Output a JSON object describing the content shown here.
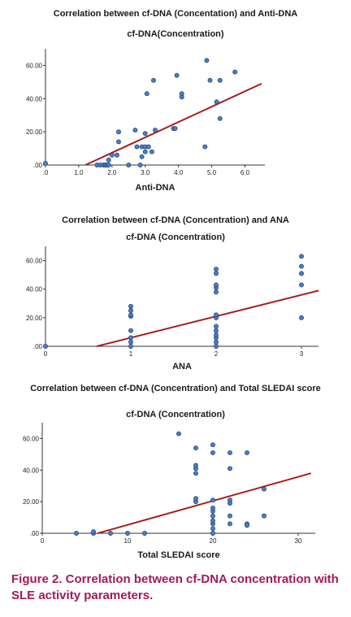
{
  "chart_data": [
    {
      "type": "scatter",
      "title": "Correlation between cf-DNA (Concentation) and Anti-DNA",
      "ylabel": "cf-DNA(Concentration)",
      "xlabel": "Anti-DNA",
      "xlim": [
        0,
        6.6
      ],
      "ylim": [
        0,
        70
      ],
      "x_ticks": [
        0,
        1,
        2,
        3,
        4,
        5,
        6
      ],
      "x_tick_labels": [
        ".0",
        "1.0",
        "2.0",
        "3.0",
        "4.0",
        "5.0",
        "6.0"
      ],
      "y_ticks": [
        0,
        20,
        40,
        60
      ],
      "y_tick_labels": [
        ".00",
        "20.00",
        "40.00",
        "60.00"
      ],
      "points": [
        [
          0.0,
          1
        ],
        [
          1.55,
          0
        ],
        [
          1.65,
          0
        ],
        [
          1.75,
          0
        ],
        [
          1.8,
          0
        ],
        [
          1.85,
          0
        ],
        [
          1.9,
          0
        ],
        [
          1.9,
          3
        ],
        [
          2.0,
          6
        ],
        [
          2.15,
          6
        ],
        [
          2.2,
          14
        ],
        [
          2.2,
          20
        ],
        [
          2.5,
          0
        ],
        [
          2.7,
          21
        ],
        [
          2.75,
          11
        ],
        [
          2.85,
          0
        ],
        [
          2.9,
          5
        ],
        [
          2.9,
          11
        ],
        [
          3.0,
          19
        ],
        [
          3.0,
          8
        ],
        [
          3.0,
          11
        ],
        [
          3.05,
          43
        ],
        [
          3.1,
          11
        ],
        [
          3.2,
          8
        ],
        [
          3.25,
          51
        ],
        [
          3.3,
          21
        ],
        [
          3.85,
          22
        ],
        [
          3.9,
          22
        ],
        [
          3.95,
          54
        ],
        [
          4.1,
          41
        ],
        [
          4.1,
          43
        ],
        [
          4.8,
          11
        ],
        [
          4.85,
          63
        ],
        [
          4.95,
          51
        ],
        [
          5.15,
          38
        ],
        [
          5.25,
          28
        ],
        [
          5.25,
          51
        ],
        [
          5.7,
          56
        ]
      ],
      "fit_line": [
        [
          1.2,
          0
        ],
        [
          6.5,
          49
        ]
      ],
      "marker_color": "#4a7fc0",
      "line_color": "#a61c1c"
    },
    {
      "type": "scatter",
      "title": "Correlation between cf-DNA (Concentration) and ANA",
      "ylabel": "cf-DNA (Concentration)",
      "xlabel": "ANA",
      "xlim": [
        0,
        3.2
      ],
      "ylim": [
        0,
        70
      ],
      "x_ticks": [
        0,
        1,
        2,
        3
      ],
      "x_tick_labels": [
        "0",
        "1",
        "2",
        "3"
      ],
      "y_ticks": [
        0,
        20,
        40,
        60
      ],
      "y_tick_labels": [
        ".00",
        "20.00",
        "40.00",
        "60.00"
      ],
      "points": [
        [
          0,
          0
        ],
        [
          1,
          0
        ],
        [
          1,
          3
        ],
        [
          1,
          6
        ],
        [
          1,
          11
        ],
        [
          1,
          21
        ],
        [
          1,
          22
        ],
        [
          1,
          25
        ],
        [
          1,
          28
        ],
        [
          2,
          0
        ],
        [
          2,
          3
        ],
        [
          2,
          6
        ],
        [
          2,
          8
        ],
        [
          2,
          11
        ],
        [
          2,
          14
        ],
        [
          2,
          20
        ],
        [
          2,
          22
        ],
        [
          2,
          38
        ],
        [
          2,
          41
        ],
        [
          2,
          43
        ],
        [
          2,
          51
        ],
        [
          2,
          54
        ],
        [
          3,
          20
        ],
        [
          3,
          43
        ],
        [
          3,
          51
        ],
        [
          3,
          56
        ],
        [
          3,
          63
        ]
      ],
      "fit_line": [
        [
          0.6,
          0
        ],
        [
          3.2,
          39
        ]
      ],
      "marker_color": "#4a7fc0",
      "line_color": "#a61c1c"
    },
    {
      "type": "scatter",
      "title": "Correlation between cf-DNA (Concentration) and Total SLEDAI score",
      "ylabel": "cf-DNA (Concentration)",
      "xlabel": "Total SLEDAI score",
      "xlim": [
        0,
        32
      ],
      "ylim": [
        0,
        70
      ],
      "x_ticks": [
        0,
        10,
        20,
        30
      ],
      "x_tick_labels": [
        "0",
        "10",
        "20",
        "30"
      ],
      "y_ticks": [
        0,
        20,
        40,
        60
      ],
      "y_tick_labels": [
        ".00",
        "20.00",
        "40.00",
        "60.00"
      ],
      "points": [
        [
          4,
          0
        ],
        [
          6,
          0
        ],
        [
          6,
          1
        ],
        [
          8,
          0
        ],
        [
          10,
          0
        ],
        [
          12,
          0
        ],
        [
          16,
          63
        ],
        [
          18,
          38
        ],
        [
          18,
          41
        ],
        [
          18,
          43
        ],
        [
          18,
          20
        ],
        [
          18,
          22
        ],
        [
          18,
          54
        ],
        [
          20,
          0
        ],
        [
          20,
          3
        ],
        [
          20,
          6
        ],
        [
          20,
          8
        ],
        [
          20,
          11
        ],
        [
          20,
          14
        ],
        [
          20,
          16
        ],
        [
          20,
          21
        ],
        [
          20,
          51
        ],
        [
          20,
          56
        ],
        [
          22,
          6
        ],
        [
          22,
          11
        ],
        [
          22,
          19
        ],
        [
          22,
          21
        ],
        [
          22,
          41
        ],
        [
          22,
          51
        ],
        [
          24,
          6
        ],
        [
          24,
          5
        ],
        [
          24,
          51
        ],
        [
          26,
          11
        ],
        [
          26,
          28
        ]
      ],
      "fit_line": [
        [
          6.5,
          0
        ],
        [
          31.5,
          38
        ]
      ],
      "marker_color": "#4a7fc0",
      "line_color": "#a61c1c"
    }
  ],
  "caption": "Figure 2. Correlation between cf-DNA concentration with SLE activity parameters."
}
